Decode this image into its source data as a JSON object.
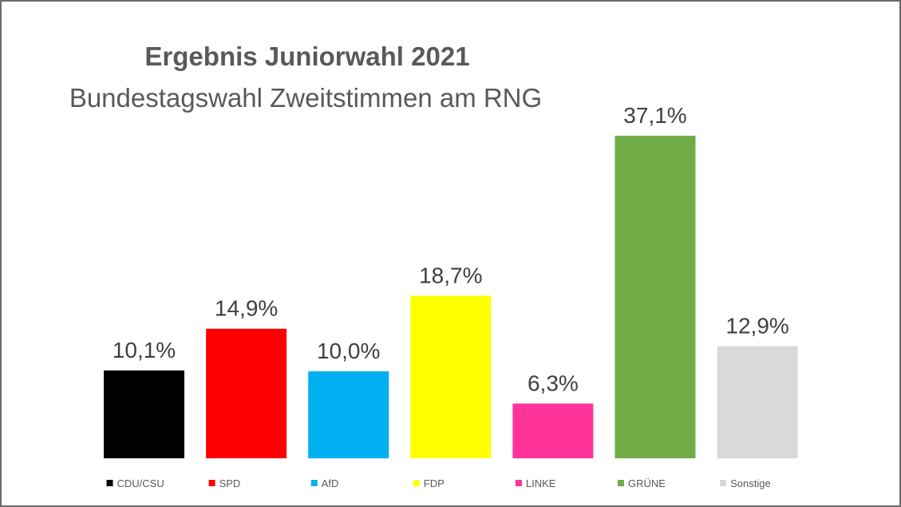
{
  "chart_data": {
    "type": "bar",
    "title": "Ergebnis Juniorwahl 2021",
    "subtitle": "Bundestagswahl Zweitstimmen am RNG",
    "categories": [
      "CDU/CSU",
      "SPD",
      "AfD",
      "FDP",
      "LINKE",
      "GRÜNE",
      "Sonstige"
    ],
    "values": [
      10.1,
      14.9,
      10.0,
      18.7,
      6.3,
      37.1,
      12.9
    ],
    "value_labels": [
      "10,1%",
      "14,9%",
      "10,0%",
      "18,7%",
      "6,3%",
      "37,1%",
      "12,9%"
    ],
    "colors": [
      "#000000",
      "#ff0000",
      "#00b0f0",
      "#ffff00",
      "#ff3399",
      "#70ad47",
      "#d9d9d9"
    ],
    "legend": "bottom",
    "grid": false,
    "xlabel": "",
    "ylabel": "",
    "ylim": [
      0,
      40
    ]
  }
}
